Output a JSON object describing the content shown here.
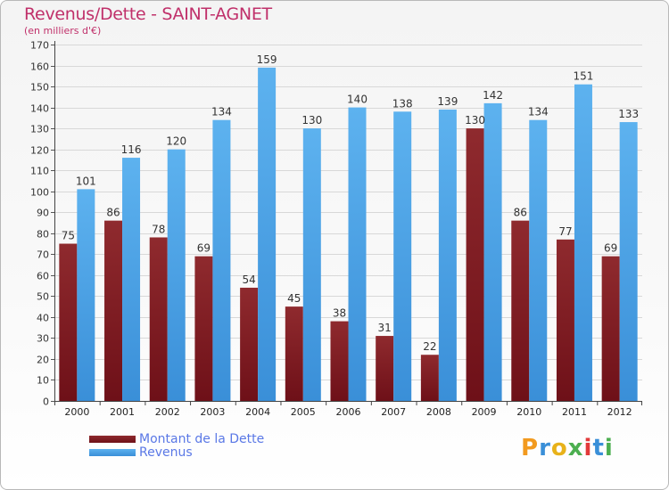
{
  "colors": {
    "dette": "#6e1018",
    "dette_light": "#8f2a2e",
    "revenus": "#3a8fd8",
    "revenus_light": "#5db2ef",
    "title": "#c0306a",
    "legend_text": "#5a78e6"
  },
  "legend": {
    "dette_label": "Montant de la Dette",
    "revenus_label": "Revenus"
  },
  "logo": {
    "text": "Proxiti"
  },
  "chart_data": {
    "type": "bar",
    "title": "Revenus/Dette - SAINT-AGNET",
    "subtitle": "(en milliers d'€)",
    "xlabel": "",
    "ylabel": "",
    "ylim": [
      0,
      170
    ],
    "yticks": [
      0,
      10,
      20,
      30,
      40,
      50,
      60,
      70,
      80,
      90,
      100,
      110,
      120,
      130,
      140,
      150,
      160,
      170
    ],
    "grid": true,
    "categories": [
      "2000",
      "2001",
      "2002",
      "2003",
      "2004",
      "2005",
      "2006",
      "2007",
      "2008",
      "2009",
      "2010",
      "2011",
      "2012"
    ],
    "series": [
      {
        "name": "Montant de la Dette",
        "values": [
          75,
          86,
          78,
          69,
          54,
          45,
          38,
          31,
          22,
          130,
          86,
          77,
          69
        ]
      },
      {
        "name": "Revenus",
        "values": [
          101,
          116,
          120,
          134,
          159,
          130,
          140,
          138,
          139,
          142,
          134,
          151,
          133
        ]
      }
    ]
  }
}
